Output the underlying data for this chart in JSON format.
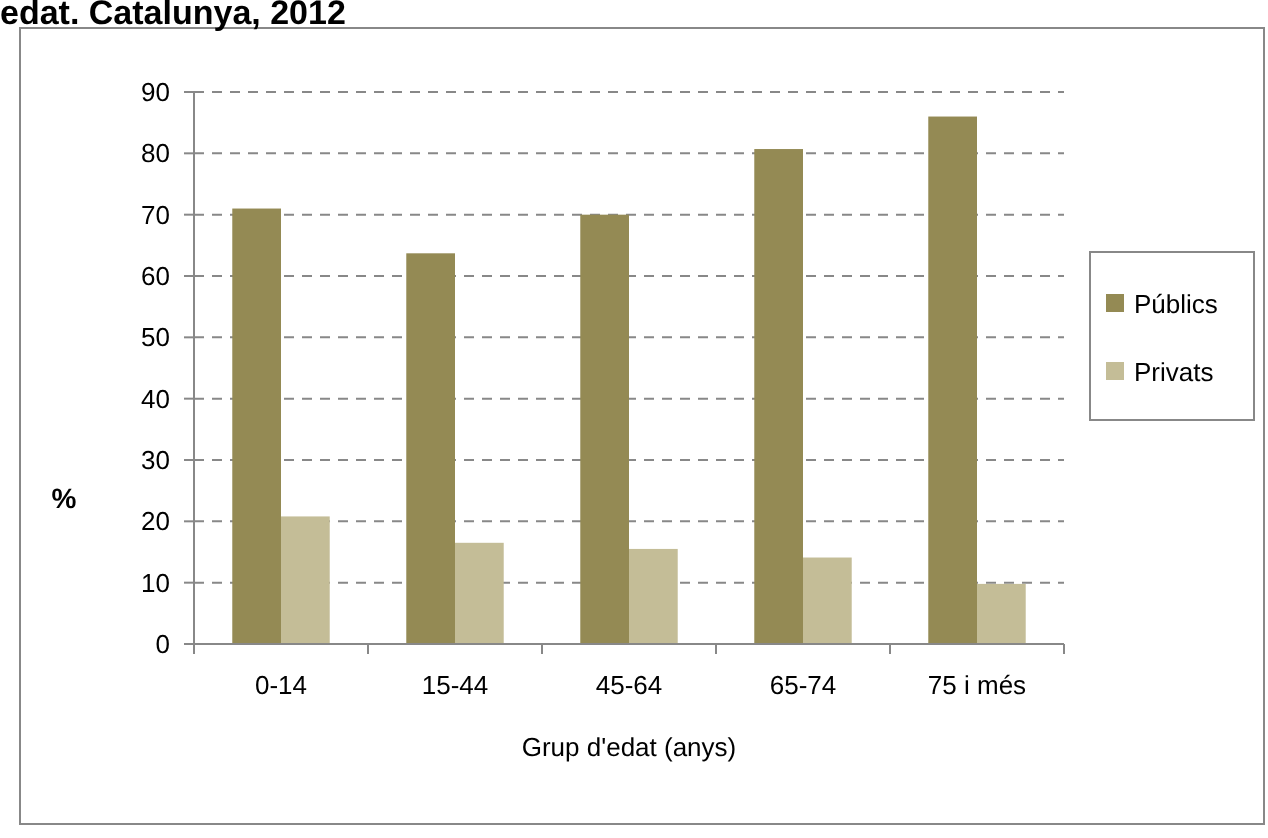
{
  "chart_data": {
    "type": "bar",
    "title": "edat. Catalunya, 2012",
    "xlabel": "Grup d'edat  (anys)",
    "ylabel": "%",
    "categories": [
      "0-14",
      "15-44",
      "45-64",
      "65-74",
      "75 i més"
    ],
    "series": [
      {
        "name": "Públics",
        "color": "#948a54",
        "values": [
          71,
          63.7,
          70,
          80.7,
          86
        ]
      },
      {
        "name": "Privats",
        "color": "#c4bd97",
        "values": [
          20.8,
          16.5,
          15.5,
          14.1,
          9.8
        ]
      }
    ],
    "ylim": [
      0,
      90
    ],
    "yticks": [
      0,
      10,
      20,
      30,
      40,
      50,
      60,
      70,
      80,
      90
    ],
    "grid": "y",
    "legend": "right"
  }
}
